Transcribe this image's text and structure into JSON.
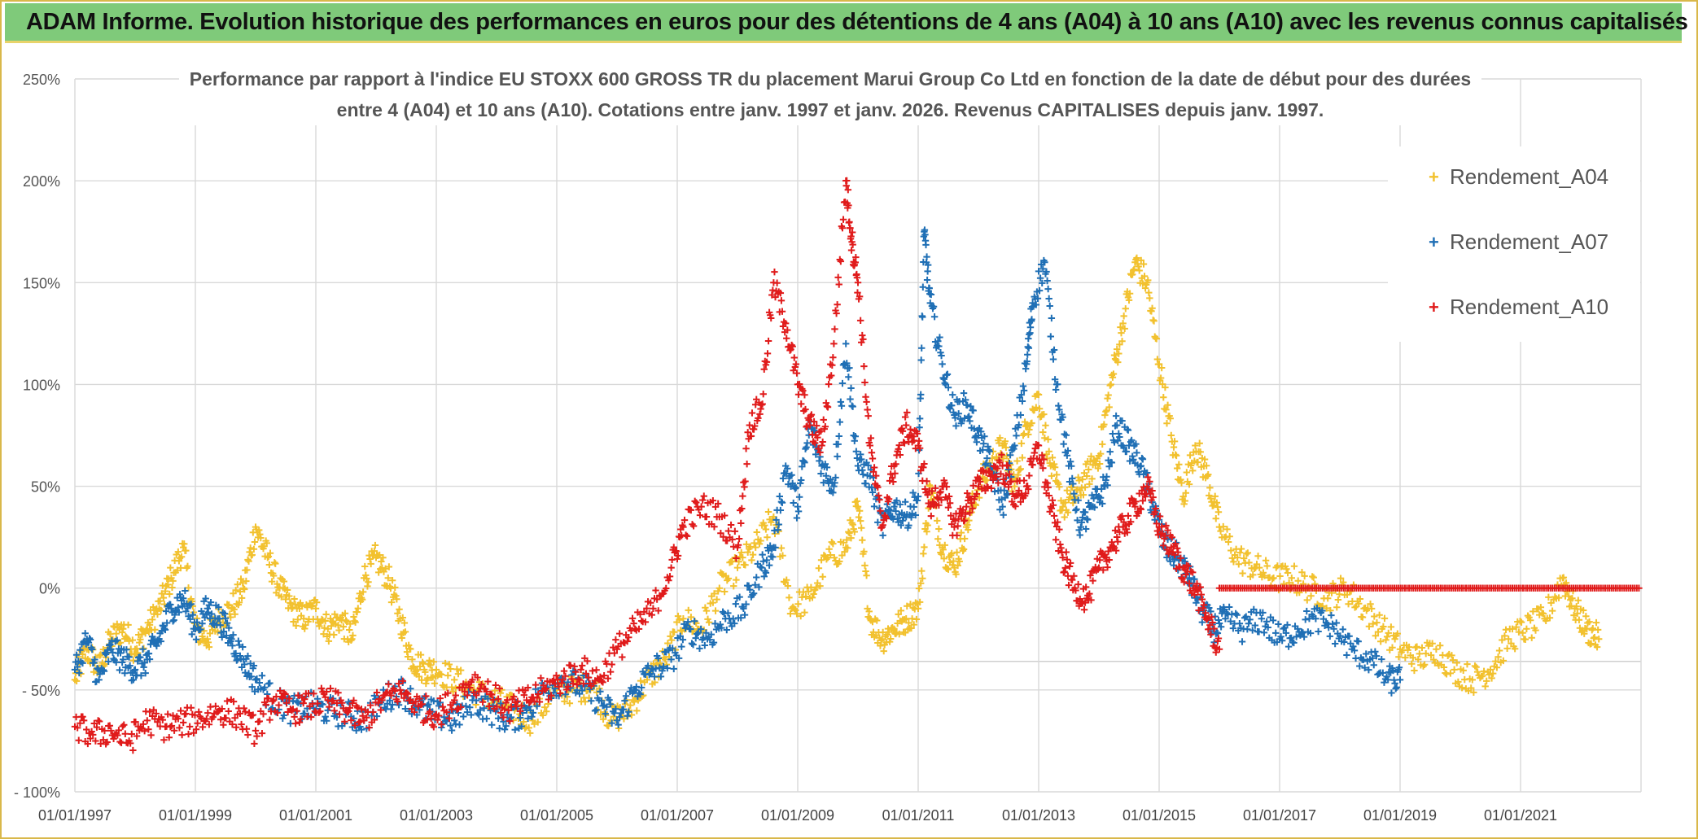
{
  "banner": {
    "title": "ADAM Informe. Evolution historique des performances en euros pour des détentions de 4 ans (A04) à 10 ans (A10) avec les revenus connus capitalisés"
  },
  "chart_data": {
    "type": "scatter",
    "title_line1": "Performance par rapport à l'indice EU STOXX 600 GROSS TR  du placement Marui Group Co Ltd en fonction de la date de début pour des durées",
    "title_line2": "entre 4 (A04) et 10 ans (A10). Cotations entre janv. 1997 et janv. 2026. Revenus CAPITALISES depuis janv. 1997.",
    "xlabel": "",
    "ylabel": "",
    "xlim": [
      1997.0,
      2023.0
    ],
    "ylim": [
      -100,
      250
    ],
    "y_ticks": [
      "250%",
      "200%",
      "150%",
      "100%",
      "50%",
      "0%",
      "- 50%",
      "- 100%"
    ],
    "y_tick_values": [
      250,
      200,
      150,
      100,
      50,
      0,
      -50,
      -100
    ],
    "x_ticks": [
      "01/01/1997",
      "01/01/1999",
      "01/01/2001",
      "01/01/2003",
      "01/01/2005",
      "01/01/2007",
      "01/01/2009",
      "01/01/2011",
      "01/01/2013",
      "01/01/2015",
      "01/01/2017",
      "01/01/2019",
      "01/01/2021"
    ],
    "x_tick_values": [
      1997,
      1999,
      2001,
      2003,
      2005,
      2007,
      2009,
      2011,
      2013,
      2015,
      2017,
      2019,
      2021
    ],
    "legend_position": "right",
    "series": [
      {
        "name": "Rendement_A04",
        "color": "#f2c12e",
        "x": [
          1997.0,
          1997.2,
          1997.4,
          1997.6,
          1997.8,
          1998.0,
          1998.2,
          1998.4,
          1998.6,
          1998.8,
          1999.0,
          1999.2,
          1999.4,
          1999.6,
          1999.8,
          2000.0,
          2000.2,
          2000.4,
          2000.6,
          2000.8,
          2001.0,
          2001.2,
          2001.4,
          2001.6,
          2001.8,
          2002.0,
          2002.2,
          2002.4,
          2002.6,
          2002.8,
          2003.0,
          2003.3,
          2003.6,
          2004.0,
          2004.3,
          2004.6,
          2005.0,
          2005.3,
          2005.6,
          2005.9,
          2006.2,
          2006.5,
          2006.8,
          2007.1,
          2007.4,
          2007.7,
          2008.0,
          2008.3,
          2008.6,
          2008.9,
          2009.2,
          2009.5,
          2009.8,
          2010.0,
          2010.2,
          2010.4,
          2010.6,
          2010.8,
          2011.0,
          2011.2,
          2011.4,
          2011.6,
          2011.8,
          2012.0,
          2012.2,
          2012.4,
          2012.6,
          2012.8,
          2013.0,
          2013.2,
          2013.4,
          2013.6,
          2013.8,
          2014.0,
          2014.2,
          2014.4,
          2014.6,
          2014.8,
          2015.0,
          2015.2,
          2015.4,
          2015.6,
          2015.8,
          2016.0,
          2016.3,
          2016.6,
          2016.9,
          2017.2,
          2017.5,
          2017.8,
          2018.1,
          2018.4,
          2018.7,
          2019.0,
          2019.3,
          2019.6,
          2019.9,
          2020.2,
          2020.5,
          2020.8,
          2021.1,
          2021.4,
          2021.7,
          2021.9,
          2022.1,
          2022.3
        ],
        "y": [
          -45,
          -30,
          -40,
          -25,
          -20,
          -30,
          -20,
          -10,
          5,
          20,
          -20,
          -25,
          -15,
          -10,
          0,
          30,
          15,
          0,
          -10,
          -15,
          -10,
          -20,
          -15,
          -25,
          5,
          15,
          5,
          -15,
          -35,
          -40,
          -40,
          -45,
          -50,
          -55,
          -60,
          -65,
          -50,
          -50,
          -48,
          -65,
          -60,
          -45,
          -35,
          -15,
          -20,
          0,
          10,
          20,
          35,
          -10,
          -5,
          15,
          20,
          40,
          -15,
          -25,
          -20,
          -15,
          -10,
          50,
          20,
          10,
          30,
          50,
          60,
          70,
          50,
          80,
          95,
          60,
          40,
          45,
          55,
          65,
          100,
          130,
          160,
          150,
          110,
          75,
          45,
          70,
          55,
          30,
          15,
          10,
          5,
          5,
          0,
          -5,
          0,
          -10,
          -20,
          -30,
          -35,
          -30,
          -40,
          -45,
          -40,
          -25,
          -20,
          -15,
          5,
          -10,
          -20,
          -25
        ]
      },
      {
        "name": "Rendement_A07",
        "color": "#1f6fb5",
        "x": [
          1997.0,
          1997.2,
          1997.4,
          1997.6,
          1997.8,
          1998.0,
          1998.2,
          1998.4,
          1998.6,
          1998.8,
          1999.0,
          1999.2,
          1999.4,
          1999.6,
          1999.8,
          2000.0,
          2000.3,
          2000.6,
          2000.9,
          2001.2,
          2001.5,
          2001.8,
          2002.1,
          2002.4,
          2002.7,
          2003.0,
          2003.3,
          2003.6,
          2003.9,
          2004.2,
          2004.5,
          2004.8,
          2005.1,
          2005.4,
          2005.7,
          2006.0,
          2006.3,
          2006.6,
          2006.9,
          2007.2,
          2007.5,
          2007.8,
          2008.1,
          2008.4,
          2008.6,
          2008.8,
          2009.0,
          2009.2,
          2009.4,
          2009.6,
          2009.8,
          2010.0,
          2010.2,
          2010.4,
          2010.6,
          2010.8,
          2011.0,
          2011.1,
          2011.2,
          2011.4,
          2011.6,
          2011.8,
          2012.0,
          2012.2,
          2012.4,
          2012.6,
          2012.8,
          2012.9,
          2013.1,
          2013.3,
          2013.5,
          2013.7,
          2013.9,
          2014.1,
          2014.3,
          2014.5,
          2014.7,
          2014.9,
          2015.1,
          2015.3,
          2015.5,
          2015.7,
          2015.9,
          2016.1,
          2016.4,
          2016.7,
          2017.0,
          2017.3,
          2017.6,
          2017.9,
          2018.2,
          2018.5,
          2018.8,
          2019.0
        ],
        "y": [
          -40,
          -25,
          -45,
          -30,
          -35,
          -40,
          -35,
          -25,
          -10,
          -5,
          -20,
          -10,
          -15,
          -25,
          -35,
          -45,
          -55,
          -60,
          -58,
          -60,
          -62,
          -65,
          -55,
          -50,
          -58,
          -62,
          -65,
          -55,
          -60,
          -65,
          -60,
          -50,
          -45,
          -48,
          -55,
          -65,
          -50,
          -40,
          -35,
          -20,
          -25,
          -15,
          -10,
          10,
          20,
          60,
          40,
          80,
          60,
          50,
          120,
          60,
          55,
          30,
          40,
          35,
          45,
          175,
          140,
          110,
          85,
          90,
          75,
          60,
          40,
          70,
          110,
          140,
          160,
          100,
          60,
          30,
          40,
          50,
          80,
          70,
          60,
          40,
          20,
          15,
          5,
          -10,
          -20,
          -15,
          -20,
          -15,
          -25,
          -20,
          -15,
          -20,
          -30,
          -35,
          -45,
          -45
        ]
      },
      {
        "name": "Rendement_A10",
        "color": "#e01b1b",
        "x": [
          1997.0,
          1997.3,
          1997.6,
          1997.9,
          1998.2,
          1998.5,
          1998.8,
          1999.1,
          1999.4,
          1999.7,
          2000.0,
          2000.3,
          2000.6,
          2000.9,
          2001.2,
          2001.5,
          2001.8,
          2002.1,
          2002.4,
          2002.7,
          2003.0,
          2003.3,
          2003.6,
          2003.9,
          2004.2,
          2004.5,
          2004.8,
          2005.1,
          2005.4,
          2005.7,
          2006.0,
          2006.3,
          2006.6,
          2006.9,
          2007.1,
          2007.4,
          2007.7,
          2008.0,
          2008.2,
          2008.4,
          2008.6,
          2008.8,
          2009.0,
          2009.2,
          2009.4,
          2009.6,
          2009.8,
          2009.9,
          2010.0,
          2010.2,
          2010.4,
          2010.6,
          2010.8,
          2011.0,
          2011.2,
          2011.4,
          2011.6,
          2011.8,
          2012.0,
          2012.2,
          2012.4,
          2012.6,
          2012.8,
          2013.0,
          2013.2,
          2013.4,
          2013.6,
          2013.8,
          2014.0,
          2014.2,
          2014.4,
          2014.6,
          2014.8,
          2015.0,
          2015.2,
          2015.4,
          2015.6,
          2015.8,
          2016.0
        ],
        "y": [
          -68,
          -72,
          -70,
          -75,
          -65,
          -68,
          -66,
          -64,
          -60,
          -62,
          -70,
          -55,
          -60,
          -58,
          -55,
          -60,
          -65,
          -55,
          -50,
          -58,
          -62,
          -55,
          -45,
          -52,
          -60,
          -55,
          -50,
          -45,
          -40,
          -45,
          -30,
          -20,
          -10,
          10,
          30,
          40,
          35,
          20,
          80,
          90,
          150,
          130,
          100,
          80,
          70,
          120,
          200,
          170,
          150,
          70,
          30,
          60,
          80,
          70,
          40,
          50,
          30,
          40,
          50,
          55,
          60,
          45,
          50,
          70,
          40,
          15,
          0,
          -5,
          10,
          20,
          30,
          40,
          50,
          30,
          20,
          10,
          0,
          -15,
          -30
        ]
      }
    ],
    "a10_flat_segment": {
      "x_start": 2016.0,
      "x_end": 2023.0,
      "y": 0
    }
  }
}
